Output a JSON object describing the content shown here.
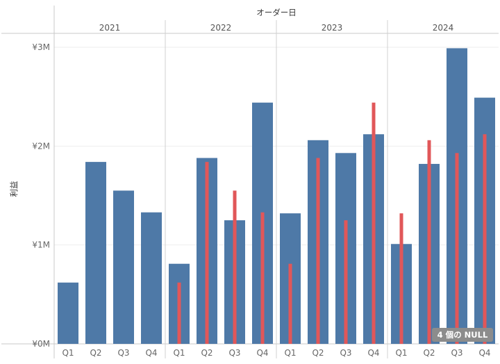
{
  "chart_data": {
    "type": "bar",
    "column_header_title": "オーダー日",
    "ylabel": "利益",
    "ylim": [
      0,
      3000000
    ],
    "y_ticks": [
      {
        "value": 0,
        "label": "¥0M"
      },
      {
        "value": 1000000,
        "label": "¥1M"
      },
      {
        "value": 2000000,
        "label": "¥2M"
      },
      {
        "value": 3000000,
        "label": "¥3M"
      }
    ],
    "years": [
      "2021",
      "2022",
      "2023",
      "2024"
    ],
    "quarters": [
      "Q1",
      "Q2",
      "Q3",
      "Q4"
    ],
    "series": [
      {
        "values": [
          620000,
          1840000,
          1550000,
          1330000,
          810000,
          1880000,
          1250000,
          2440000,
          1320000,
          2060000,
          1930000,
          2120000,
          1010000,
          1820000,
          2990000,
          2490000
        ],
        "color": "#4e79a7"
      },
      {
        "values": [
          null,
          null,
          null,
          null,
          620000,
          1840000,
          1550000,
          1330000,
          810000,
          1880000,
          1250000,
          2440000,
          1320000,
          2060000,
          1930000,
          2120000
        ],
        "color": "#e15759"
      }
    ],
    "grid": true,
    "null_indicator": "4 個の NULL"
  }
}
